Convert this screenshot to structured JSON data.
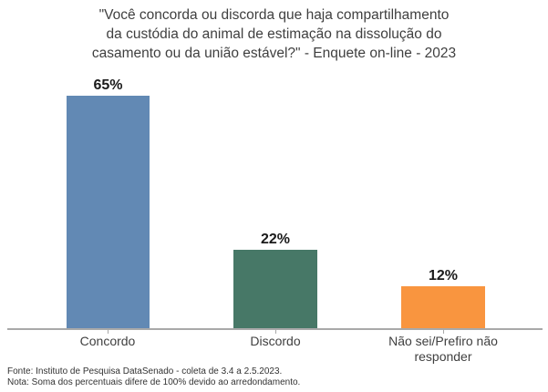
{
  "title_lines": [
    "\"Você concorda ou discorda que haja compartilhamento",
    "da custódia do animal de estimação na dissolução do",
    "casamento ou da união estável?\" - Enquete on-line - 2023"
  ],
  "chart_data": {
    "type": "bar",
    "title": "\"Você concorda ou discorda que haja compartilhamento da custódia do animal de estimação na dissolução do casamento ou da união estável?\" - Enquete on-line - 2023",
    "categories": [
      "Concordo",
      "Discordo",
      "Não sei/Prefiro não responder"
    ],
    "values": [
      65,
      22,
      12
    ],
    "value_labels": [
      "65%",
      "22%",
      "12%"
    ],
    "unit": "%",
    "colors": [
      "#6289b4",
      "#477867",
      "#f9953f"
    ],
    "axis_color": "#a9a9a9",
    "ylim": [
      0,
      65
    ],
    "grid": false,
    "legend": false,
    "xlabel": "",
    "ylabel": ""
  },
  "footer": {
    "fonte": "Fonte: Instituto de Pesquisa DataSenado - coleta de 3.4 a 2.5.2023.",
    "nota": "Nota: Soma dos percentuais difere de 100% devido ao arredondamento."
  }
}
